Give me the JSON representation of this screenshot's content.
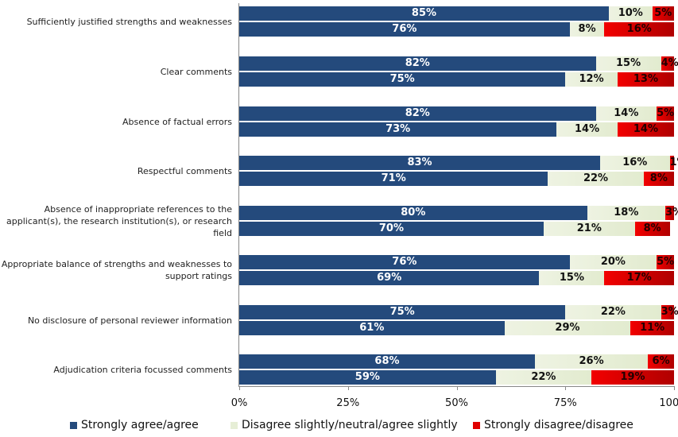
{
  "chart_data": {
    "type": "bar",
    "orientation": "horizontal",
    "stacked": true,
    "categories": [
      "Sufficiently justified strengths and weaknesses",
      "Clear comments",
      "Absence of factual errors",
      "Respectful comments",
      "Absence of inappropriate references to the applicant(s), the research institution(s), or research field",
      "Appropriate balance of strengths and weaknesses to support ratings",
      "No disclosure of personal reviewer information",
      "Adjudication criteria focussed comments"
    ],
    "bars_per_category": 2,
    "series": [
      {
        "name": "Strongly agree/agree",
        "color": "#244A7C",
        "values": [
          [
            85,
            76
          ],
          [
            82,
            75
          ],
          [
            82,
            73
          ],
          [
            83,
            71
          ],
          [
            80,
            70
          ],
          [
            76,
            69
          ],
          [
            75,
            61
          ],
          [
            68,
            59
          ]
        ]
      },
      {
        "name": "Disagree slightly/neutral/agree slightly",
        "color": "#EBF1DE",
        "values": [
          [
            10,
            8
          ],
          [
            15,
            12
          ],
          [
            14,
            14
          ],
          [
            16,
            22
          ],
          [
            18,
            21
          ],
          [
            20,
            15
          ],
          [
            22,
            29
          ],
          [
            26,
            22
          ]
        ]
      },
      {
        "name": "Strongly disagree/disagree",
        "color": "#E00000",
        "values": [
          [
            5,
            16
          ],
          [
            4,
            13
          ],
          [
            5,
            14
          ],
          [
            1,
            8
          ],
          [
            3,
            8
          ],
          [
            5,
            17
          ],
          [
            3,
            11
          ],
          [
            6,
            19
          ]
        ]
      }
    ],
    "xlim": [
      0,
      100
    ],
    "x_ticks": [
      "0%",
      "25%",
      "50%",
      "75%",
      "100%"
    ],
    "value_suffix": "%",
    "grid": false,
    "legend": "bottom"
  }
}
